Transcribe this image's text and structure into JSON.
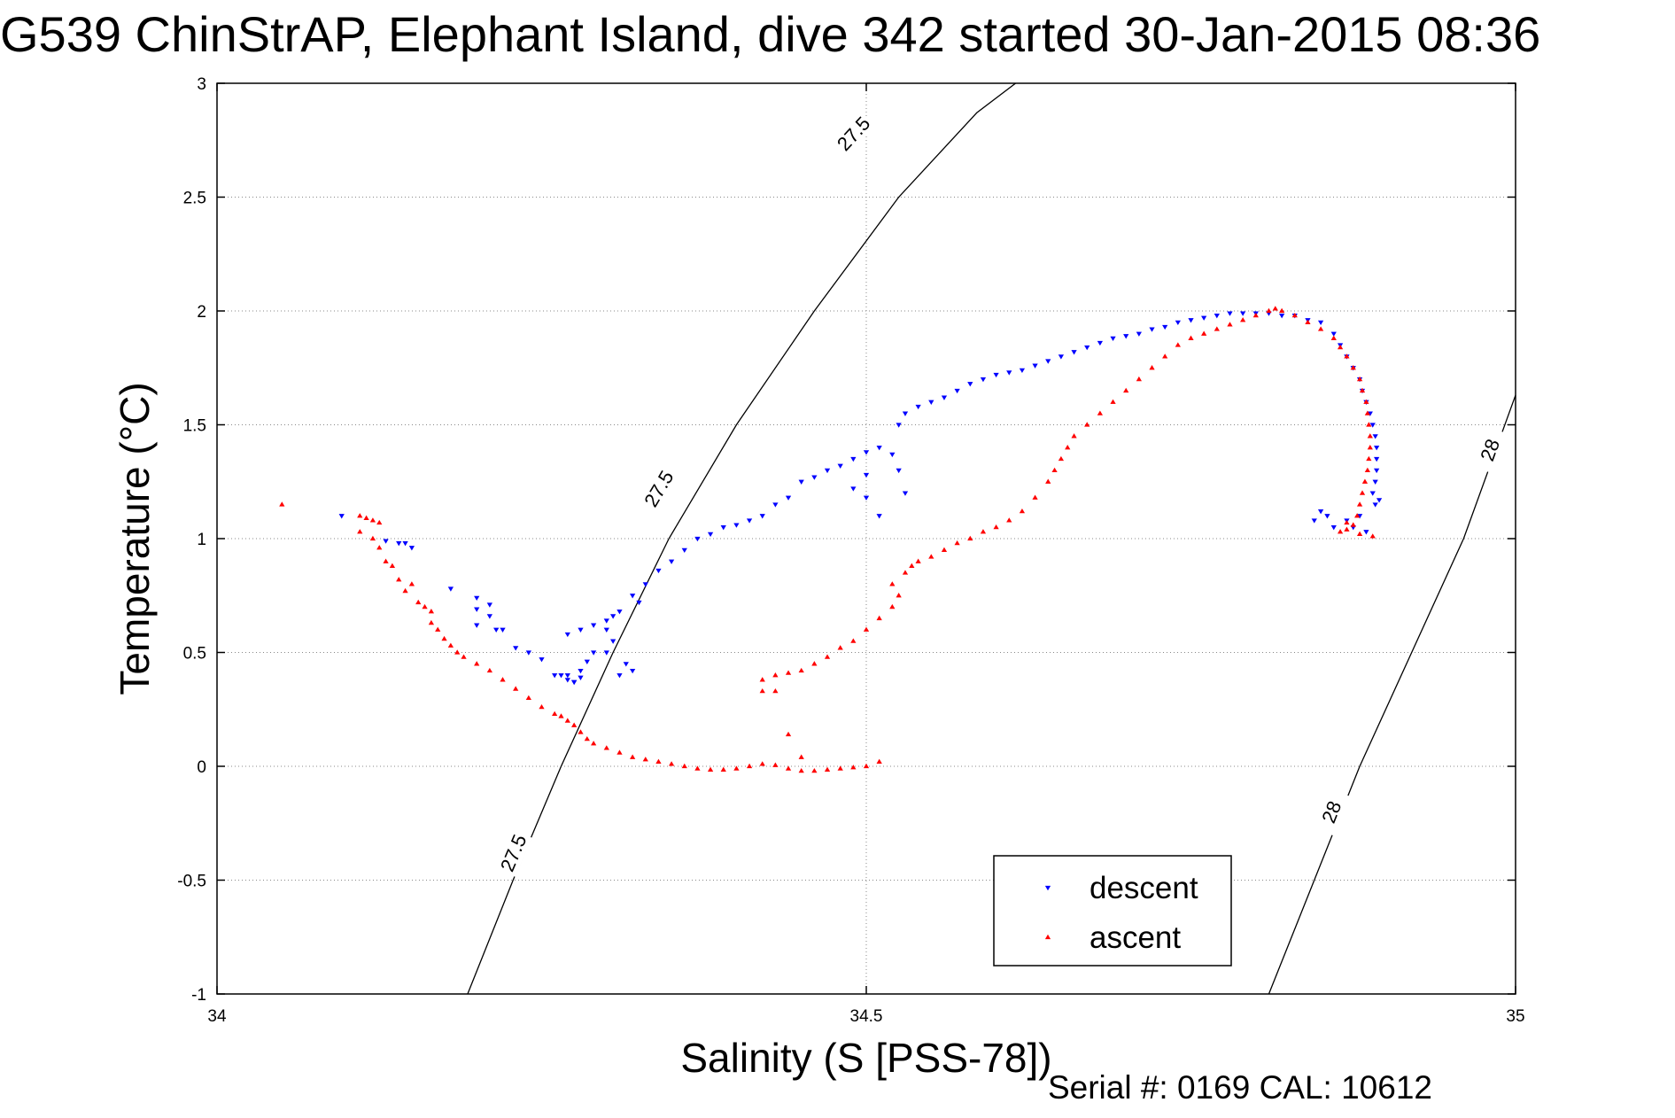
{
  "chart_data": {
    "type": "scatter",
    "title": "G539 ChinStrAP, Elephant Island, dive 342 started 30-Jan-2015 08:36",
    "xlabel": "Salinity (S [PSS-78])",
    "ylabel": "Temperature (°C)",
    "footer": "Serial #: 0169 CAL: 10612",
    "xlim": [
      34,
      35
    ],
    "ylim": [
      -1,
      3
    ],
    "x_ticks": [
      "34",
      "34.5",
      "35"
    ],
    "y_ticks": [
      "-1",
      "-0.5",
      "0",
      "0.5",
      "1",
      "1.5",
      "2",
      "2.5",
      "3"
    ],
    "grid": true,
    "legend_position": "lower-right",
    "contours": [
      {
        "label": "27.5",
        "points": [
          [
            34.193,
            -1
          ],
          [
            34.228,
            -0.5
          ],
          [
            34.265,
            0
          ],
          [
            34.305,
            0.5
          ],
          [
            34.348,
            1
          ],
          [
            34.4,
            1.5
          ],
          [
            34.46,
            2
          ],
          [
            34.525,
            2.5
          ],
          [
            34.585,
            2.87
          ],
          [
            34.615,
            3
          ]
        ],
        "label_positions": [
          [
            34.228,
            -0.38
          ],
          [
            34.34,
            1.22
          ],
          [
            34.49,
            2.78
          ]
        ]
      },
      {
        "label": "28",
        "points": [
          [
            34.81,
            -1
          ],
          [
            34.845,
            -0.5
          ],
          [
            34.88,
            0
          ],
          [
            34.92,
            0.5
          ],
          [
            34.96,
            1
          ],
          [
            35,
            1.63
          ]
        ],
        "label_positions": [
          [
            34.858,
            -0.2
          ],
          [
            34.98,
            1.39
          ]
        ]
      }
    ],
    "series": [
      {
        "name": "descent",
        "color": "#0000ff",
        "marker": "triangle-down",
        "points": [
          [
            34.096,
            1.1
          ],
          [
            34.13,
            0.99
          ],
          [
            34.14,
            0.98
          ],
          [
            34.145,
            0.98
          ],
          [
            34.15,
            0.96
          ],
          [
            34.18,
            0.78
          ],
          [
            34.2,
            0.74
          ],
          [
            34.2,
            0.69
          ],
          [
            34.2,
            0.62
          ],
          [
            34.21,
            0.71
          ],
          [
            34.21,
            0.66
          ],
          [
            34.22,
            0.6
          ],
          [
            34.215,
            0.6
          ],
          [
            34.23,
            0.52
          ],
          [
            34.24,
            0.5
          ],
          [
            34.25,
            0.47
          ],
          [
            34.26,
            0.4
          ],
          [
            34.265,
            0.4
          ],
          [
            34.27,
            0.38
          ],
          [
            34.275,
            0.37
          ],
          [
            34.28,
            0.42
          ],
          [
            34.285,
            0.46
          ],
          [
            34.29,
            0.5
          ],
          [
            34.27,
            0.4
          ],
          [
            34.275,
            0.37
          ],
          [
            34.28,
            0.39
          ],
          [
            34.27,
            0.58
          ],
          [
            34.28,
            0.6
          ],
          [
            34.29,
            0.62
          ],
          [
            34.3,
            0.64
          ],
          [
            34.305,
            0.66
          ],
          [
            34.31,
            0.68
          ],
          [
            34.3,
            0.6
          ],
          [
            34.305,
            0.55
          ],
          [
            34.3,
            0.5
          ],
          [
            34.31,
            0.4
          ],
          [
            34.32,
            0.42
          ],
          [
            34.315,
            0.45
          ],
          [
            34.32,
            0.75
          ],
          [
            34.325,
            0.72
          ],
          [
            34.33,
            0.8
          ],
          [
            34.34,
            0.86
          ],
          [
            34.35,
            0.9
          ],
          [
            34.36,
            0.95
          ],
          [
            34.37,
            1.0
          ],
          [
            34.38,
            1.02
          ],
          [
            34.39,
            1.05
          ],
          [
            34.4,
            1.06
          ],
          [
            34.41,
            1.08
          ],
          [
            34.42,
            1.1
          ],
          [
            34.43,
            1.15
          ],
          [
            34.44,
            1.18
          ],
          [
            34.45,
            1.25
          ],
          [
            34.46,
            1.27
          ],
          [
            34.47,
            1.3
          ],
          [
            34.48,
            1.32
          ],
          [
            34.49,
            1.35
          ],
          [
            34.5,
            1.38
          ],
          [
            34.51,
            1.4
          ],
          [
            34.52,
            1.37
          ],
          [
            34.5,
            1.28
          ],
          [
            34.49,
            1.22
          ],
          [
            34.5,
            1.18
          ],
          [
            34.51,
            1.1
          ],
          [
            34.53,
            1.2
          ],
          [
            34.525,
            1.3
          ],
          [
            34.525,
            1.5
          ],
          [
            34.53,
            1.55
          ],
          [
            34.54,
            1.58
          ],
          [
            34.55,
            1.6
          ],
          [
            34.56,
            1.62
          ],
          [
            34.57,
            1.65
          ],
          [
            34.58,
            1.68
          ],
          [
            34.59,
            1.7
          ],
          [
            34.6,
            1.72
          ],
          [
            34.61,
            1.73
          ],
          [
            34.62,
            1.74
          ],
          [
            34.63,
            1.76
          ],
          [
            34.64,
            1.78
          ],
          [
            34.65,
            1.8
          ],
          [
            34.66,
            1.82
          ],
          [
            34.67,
            1.84
          ],
          [
            34.68,
            1.86
          ],
          [
            34.69,
            1.88
          ],
          [
            34.7,
            1.89
          ],
          [
            34.71,
            1.9
          ],
          [
            34.72,
            1.92
          ],
          [
            34.73,
            1.93
          ],
          [
            34.74,
            1.95
          ],
          [
            34.75,
            1.96
          ],
          [
            34.76,
            1.97
          ],
          [
            34.77,
            1.98
          ],
          [
            34.78,
            1.99
          ],
          [
            34.79,
            1.99
          ],
          [
            34.8,
            1.99
          ],
          [
            34.81,
            1.99
          ],
          [
            34.82,
            1.98
          ],
          [
            34.83,
            1.98
          ],
          [
            34.84,
            1.96
          ],
          [
            34.85,
            1.95
          ],
          [
            34.86,
            1.9
          ],
          [
            34.865,
            1.85
          ],
          [
            34.87,
            1.8
          ],
          [
            34.875,
            1.75
          ],
          [
            34.88,
            1.7
          ],
          [
            34.882,
            1.65
          ],
          [
            34.885,
            1.6
          ],
          [
            34.888,
            1.55
          ],
          [
            34.89,
            1.5
          ],
          [
            34.892,
            1.45
          ],
          [
            34.893,
            1.4
          ],
          [
            34.893,
            1.35
          ],
          [
            34.893,
            1.3
          ],
          [
            34.892,
            1.25
          ],
          [
            34.89,
            1.2
          ],
          [
            34.892,
            1.15
          ],
          [
            34.895,
            1.17
          ],
          [
            34.88,
            1.1
          ],
          [
            34.87,
            1.08
          ],
          [
            34.86,
            1.05
          ],
          [
            34.855,
            1.1
          ],
          [
            34.85,
            1.12
          ],
          [
            34.845,
            1.08
          ],
          [
            34.875,
            1.05
          ],
          [
            34.885,
            1.03
          ]
        ]
      },
      {
        "name": "ascent",
        "color": "#ff0000",
        "marker": "triangle-up",
        "points": [
          [
            34.05,
            1.15
          ],
          [
            34.11,
            1.1
          ],
          [
            34.115,
            1.09
          ],
          [
            34.12,
            1.08
          ],
          [
            34.125,
            1.07
          ],
          [
            34.11,
            1.03
          ],
          [
            34.12,
            1.0
          ],
          [
            34.125,
            0.96
          ],
          [
            34.13,
            0.9
          ],
          [
            34.135,
            0.88
          ],
          [
            34.14,
            0.82
          ],
          [
            34.15,
            0.8
          ],
          [
            34.145,
            0.77
          ],
          [
            34.155,
            0.72
          ],
          [
            34.16,
            0.7
          ],
          [
            34.165,
            0.68
          ],
          [
            34.165,
            0.63
          ],
          [
            34.17,
            0.6
          ],
          [
            34.175,
            0.56
          ],
          [
            34.18,
            0.53
          ],
          [
            34.185,
            0.5
          ],
          [
            34.19,
            0.48
          ],
          [
            34.2,
            0.45
          ],
          [
            34.21,
            0.42
          ],
          [
            34.22,
            0.38
          ],
          [
            34.23,
            0.34
          ],
          [
            34.24,
            0.3
          ],
          [
            34.25,
            0.26
          ],
          [
            34.26,
            0.23
          ],
          [
            34.265,
            0.22
          ],
          [
            34.27,
            0.2
          ],
          [
            34.275,
            0.18
          ],
          [
            34.28,
            0.15
          ],
          [
            34.285,
            0.12
          ],
          [
            34.29,
            0.1
          ],
          [
            34.3,
            0.08
          ],
          [
            34.31,
            0.06
          ],
          [
            34.32,
            0.04
          ],
          [
            34.33,
            0.03
          ],
          [
            34.34,
            0.02
          ],
          [
            34.35,
            0.01
          ],
          [
            34.36,
            0.0
          ],
          [
            34.37,
            -0.01
          ],
          [
            34.38,
            -0.015
          ],
          [
            34.39,
            -0.015
          ],
          [
            34.4,
            -0.01
          ],
          [
            34.41,
            0.0
          ],
          [
            34.42,
            0.01
          ],
          [
            34.43,
            0.005
          ],
          [
            34.44,
            -0.01
          ],
          [
            34.45,
            -0.02
          ],
          [
            34.46,
            -0.02
          ],
          [
            34.47,
            -0.015
          ],
          [
            34.48,
            -0.01
          ],
          [
            34.49,
            -0.005
          ],
          [
            34.5,
            0.0
          ],
          [
            34.51,
            0.02
          ],
          [
            34.44,
            0.14
          ],
          [
            34.45,
            0.04
          ],
          [
            34.42,
            0.33
          ],
          [
            34.43,
            0.33
          ],
          [
            34.42,
            0.38
          ],
          [
            34.43,
            0.4
          ],
          [
            34.44,
            0.41
          ],
          [
            34.45,
            0.42
          ],
          [
            34.46,
            0.45
          ],
          [
            34.47,
            0.48
          ],
          [
            34.48,
            0.52
          ],
          [
            34.49,
            0.55
          ],
          [
            34.5,
            0.6
          ],
          [
            34.51,
            0.65
          ],
          [
            34.52,
            0.7
          ],
          [
            34.525,
            0.75
          ],
          [
            34.52,
            0.8
          ],
          [
            34.53,
            0.85
          ],
          [
            34.535,
            0.88
          ],
          [
            34.54,
            0.9
          ],
          [
            34.55,
            0.92
          ],
          [
            34.56,
            0.95
          ],
          [
            34.57,
            0.98
          ],
          [
            34.58,
            1.0
          ],
          [
            34.59,
            1.03
          ],
          [
            34.6,
            1.05
          ],
          [
            34.61,
            1.08
          ],
          [
            34.62,
            1.12
          ],
          [
            34.63,
            1.18
          ],
          [
            34.64,
            1.25
          ],
          [
            34.645,
            1.3
          ],
          [
            34.65,
            1.35
          ],
          [
            34.655,
            1.4
          ],
          [
            34.66,
            1.45
          ],
          [
            34.67,
            1.5
          ],
          [
            34.68,
            1.55
          ],
          [
            34.69,
            1.6
          ],
          [
            34.7,
            1.65
          ],
          [
            34.71,
            1.7
          ],
          [
            34.72,
            1.75
          ],
          [
            34.73,
            1.8
          ],
          [
            34.74,
            1.85
          ],
          [
            34.75,
            1.88
          ],
          [
            34.76,
            1.9
          ],
          [
            34.77,
            1.92
          ],
          [
            34.78,
            1.94
          ],
          [
            34.79,
            1.96
          ],
          [
            34.8,
            1.98
          ],
          [
            34.81,
            2.0
          ],
          [
            34.815,
            2.01
          ],
          [
            34.82,
            2.0
          ],
          [
            34.83,
            1.98
          ],
          [
            34.84,
            1.95
          ],
          [
            34.85,
            1.92
          ],
          [
            34.86,
            1.88
          ],
          [
            34.865,
            1.84
          ],
          [
            34.87,
            1.8
          ],
          [
            34.875,
            1.75
          ],
          [
            34.88,
            1.7
          ],
          [
            34.882,
            1.65
          ],
          [
            34.885,
            1.6
          ],
          [
            34.886,
            1.55
          ],
          [
            34.887,
            1.5
          ],
          [
            34.888,
            1.45
          ],
          [
            34.888,
            1.4
          ],
          [
            34.887,
            1.35
          ],
          [
            34.886,
            1.3
          ],
          [
            34.884,
            1.25
          ],
          [
            34.882,
            1.2
          ],
          [
            34.88,
            1.15
          ],
          [
            34.878,
            1.1
          ],
          [
            34.875,
            1.06
          ],
          [
            34.87,
            1.04
          ],
          [
            34.865,
            1.03
          ],
          [
            34.87,
            1.07
          ],
          [
            34.88,
            1.02
          ],
          [
            34.89,
            1.01
          ]
        ]
      }
    ]
  }
}
